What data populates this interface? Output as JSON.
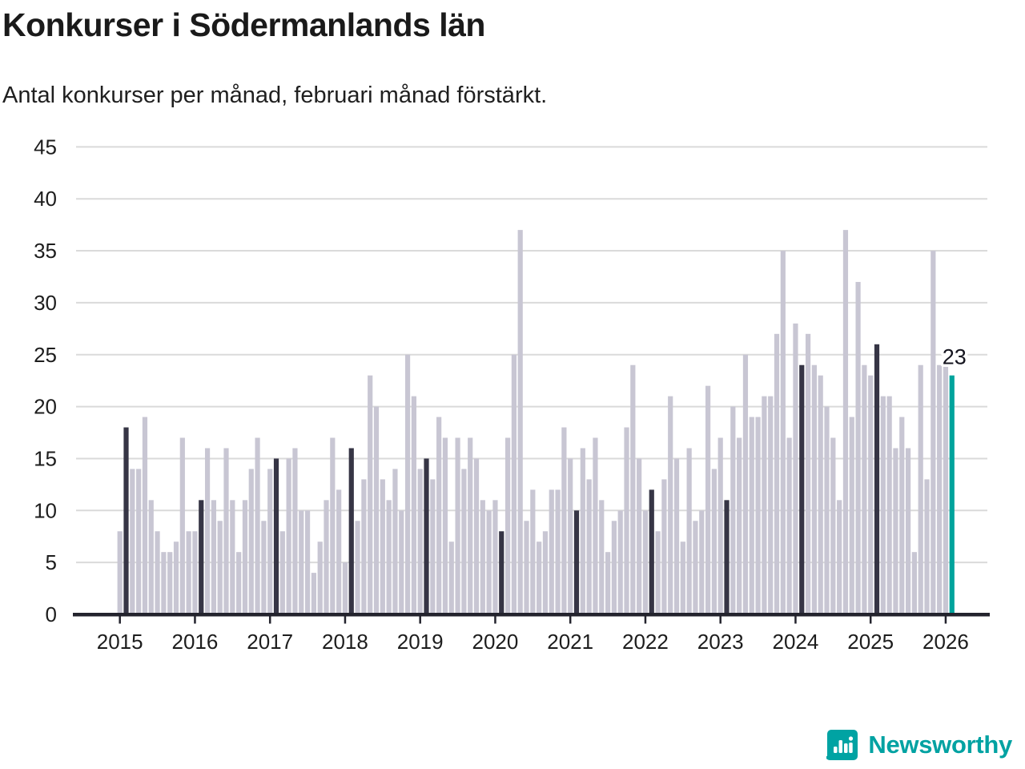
{
  "header": {
    "title": "Konkurser i Södermanlands län",
    "subtitle": "Antal konkurser per månad, februari månad förstärkt."
  },
  "chart_data": {
    "type": "bar",
    "title": "Konkurser i Södermanlands län",
    "xlabel": "",
    "ylabel": "Antal konkurser per månad",
    "start_month": "2015-01",
    "end_month": "2026-02",
    "values": [
      8,
      18,
      14,
      14,
      19,
      11,
      8,
      6,
      6,
      7,
      17,
      8,
      8,
      11,
      16,
      11,
      9,
      16,
      11,
      6,
      11,
      14,
      17,
      9,
      14,
      15,
      8,
      15,
      16,
      10,
      10,
      4,
      7,
      11,
      17,
      12,
      5,
      16,
      9,
      13,
      23,
      20,
      13,
      11,
      14,
      10,
      25,
      21,
      14,
      15,
      13,
      19,
      17,
      7,
      17,
      14,
      17,
      15,
      11,
      10,
      11,
      8,
      17,
      25,
      37,
      9,
      12,
      7,
      8,
      12,
      12,
      18,
      15,
      10,
      16,
      13,
      17,
      11,
      6,
      9,
      10,
      18,
      24,
      15,
      10,
      12,
      8,
      13,
      21,
      15,
      7,
      16,
      9,
      10,
      22,
      14,
      17,
      11,
      20,
      17,
      25,
      19,
      19,
      21,
      21,
      27,
      35,
      17,
      28,
      24,
      27,
      24,
      23,
      20,
      17,
      11,
      37,
      19,
      32,
      24,
      23,
      26,
      21,
      21,
      16,
      19,
      16,
      6,
      24,
      13,
      35,
      24,
      24,
      23
    ],
    "year_labels": [
      "2015",
      "2016",
      "2017",
      "2018",
      "2019",
      "2020",
      "2021",
      "2022",
      "2023",
      "2024",
      "2025",
      "2026"
    ],
    "yticks": [
      0,
      5,
      10,
      15,
      20,
      25,
      30,
      35,
      40,
      45
    ],
    "ylim": [
      0,
      45
    ],
    "grid": true,
    "legend_position": "none",
    "highlight_rule": "february-emphasized",
    "annotation": {
      "text": "23",
      "target_month": "2026-02"
    },
    "colors": {
      "bar_default": "#c8c6d3",
      "bar_february": "#363545",
      "bar_latest": "#00a39c",
      "gridline": "#dadada",
      "axis": "#23232d",
      "text": "#1a1a1a"
    }
  },
  "footer": {
    "brand": "Newsworthy",
    "brand_color": "#00a2a2"
  }
}
